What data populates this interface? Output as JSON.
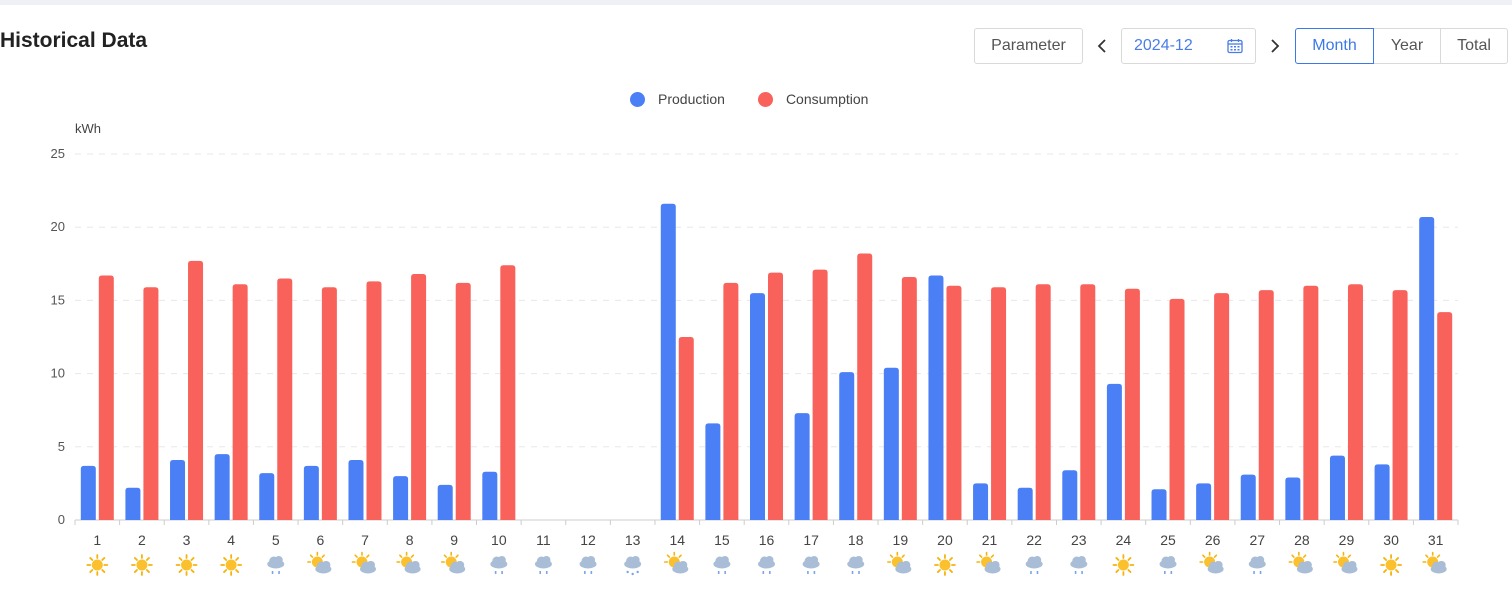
{
  "header": {
    "title": "Historical Data",
    "parameter_label": "Parameter",
    "prev_icon": "chevron-left-icon",
    "next_icon": "chevron-right-icon",
    "date_value": "2024-12",
    "calendar_icon": "calendar-icon",
    "range_tabs": [
      {
        "label": "Month",
        "active": true
      },
      {
        "label": "Year",
        "active": false
      },
      {
        "label": "Total",
        "active": false
      }
    ]
  },
  "colors": {
    "production": "#4a7ff5",
    "consumption": "#f8625b",
    "accent": "#3c79e6"
  },
  "chart_data": {
    "type": "bar",
    "ylabel": "kWh",
    "ylim": [
      0,
      25
    ],
    "yticks": [
      0,
      5,
      10,
      15,
      20,
      25
    ],
    "legend_position": "top-center",
    "grid": "horizontal-dashed",
    "categories": [
      "1",
      "2",
      "3",
      "4",
      "5",
      "6",
      "7",
      "8",
      "9",
      "10",
      "11",
      "12",
      "13",
      "14",
      "15",
      "16",
      "17",
      "18",
      "19",
      "20",
      "21",
      "22",
      "23",
      "24",
      "25",
      "26",
      "27",
      "28",
      "29",
      "30",
      "31"
    ],
    "series": [
      {
        "name": "Production",
        "color": "#4a7ff5",
        "values": [
          3.7,
          2.2,
          4.1,
          4.5,
          3.2,
          3.7,
          4.1,
          3.0,
          2.4,
          3.3,
          null,
          null,
          null,
          21.6,
          6.6,
          15.5,
          7.3,
          10.1,
          10.4,
          16.7,
          2.5,
          2.2,
          3.4,
          9.3,
          2.1,
          2.5,
          3.1,
          2.9,
          4.4,
          3.8,
          20.7
        ]
      },
      {
        "name": "Consumption",
        "color": "#f8625b",
        "values": [
          16.7,
          15.9,
          17.7,
          16.1,
          16.5,
          15.9,
          16.3,
          16.8,
          16.2,
          17.4,
          null,
          null,
          null,
          12.5,
          16.2,
          16.9,
          17.1,
          18.2,
          16.6,
          16.0,
          15.9,
          16.1,
          16.1,
          15.8,
          15.1,
          15.5,
          15.7,
          16.0,
          16.1,
          15.7,
          14.2
        ]
      }
    ],
    "weather": [
      "sunny",
      "sunny",
      "sunny",
      "sunny",
      "rain",
      "partly-cloudy",
      "partly-cloudy",
      "partly-cloudy",
      "partly-cloudy",
      "rain",
      "rain",
      "rain",
      "sleet",
      "partly-cloudy",
      "rain",
      "rain",
      "rain",
      "rain",
      "partly-cloudy",
      "sunny",
      "partly-cloudy",
      "rain",
      "rain",
      "sunny",
      "rain",
      "partly-cloudy",
      "rain",
      "partly-cloudy",
      "partly-cloudy",
      "sunny",
      "partly-cloudy"
    ]
  }
}
